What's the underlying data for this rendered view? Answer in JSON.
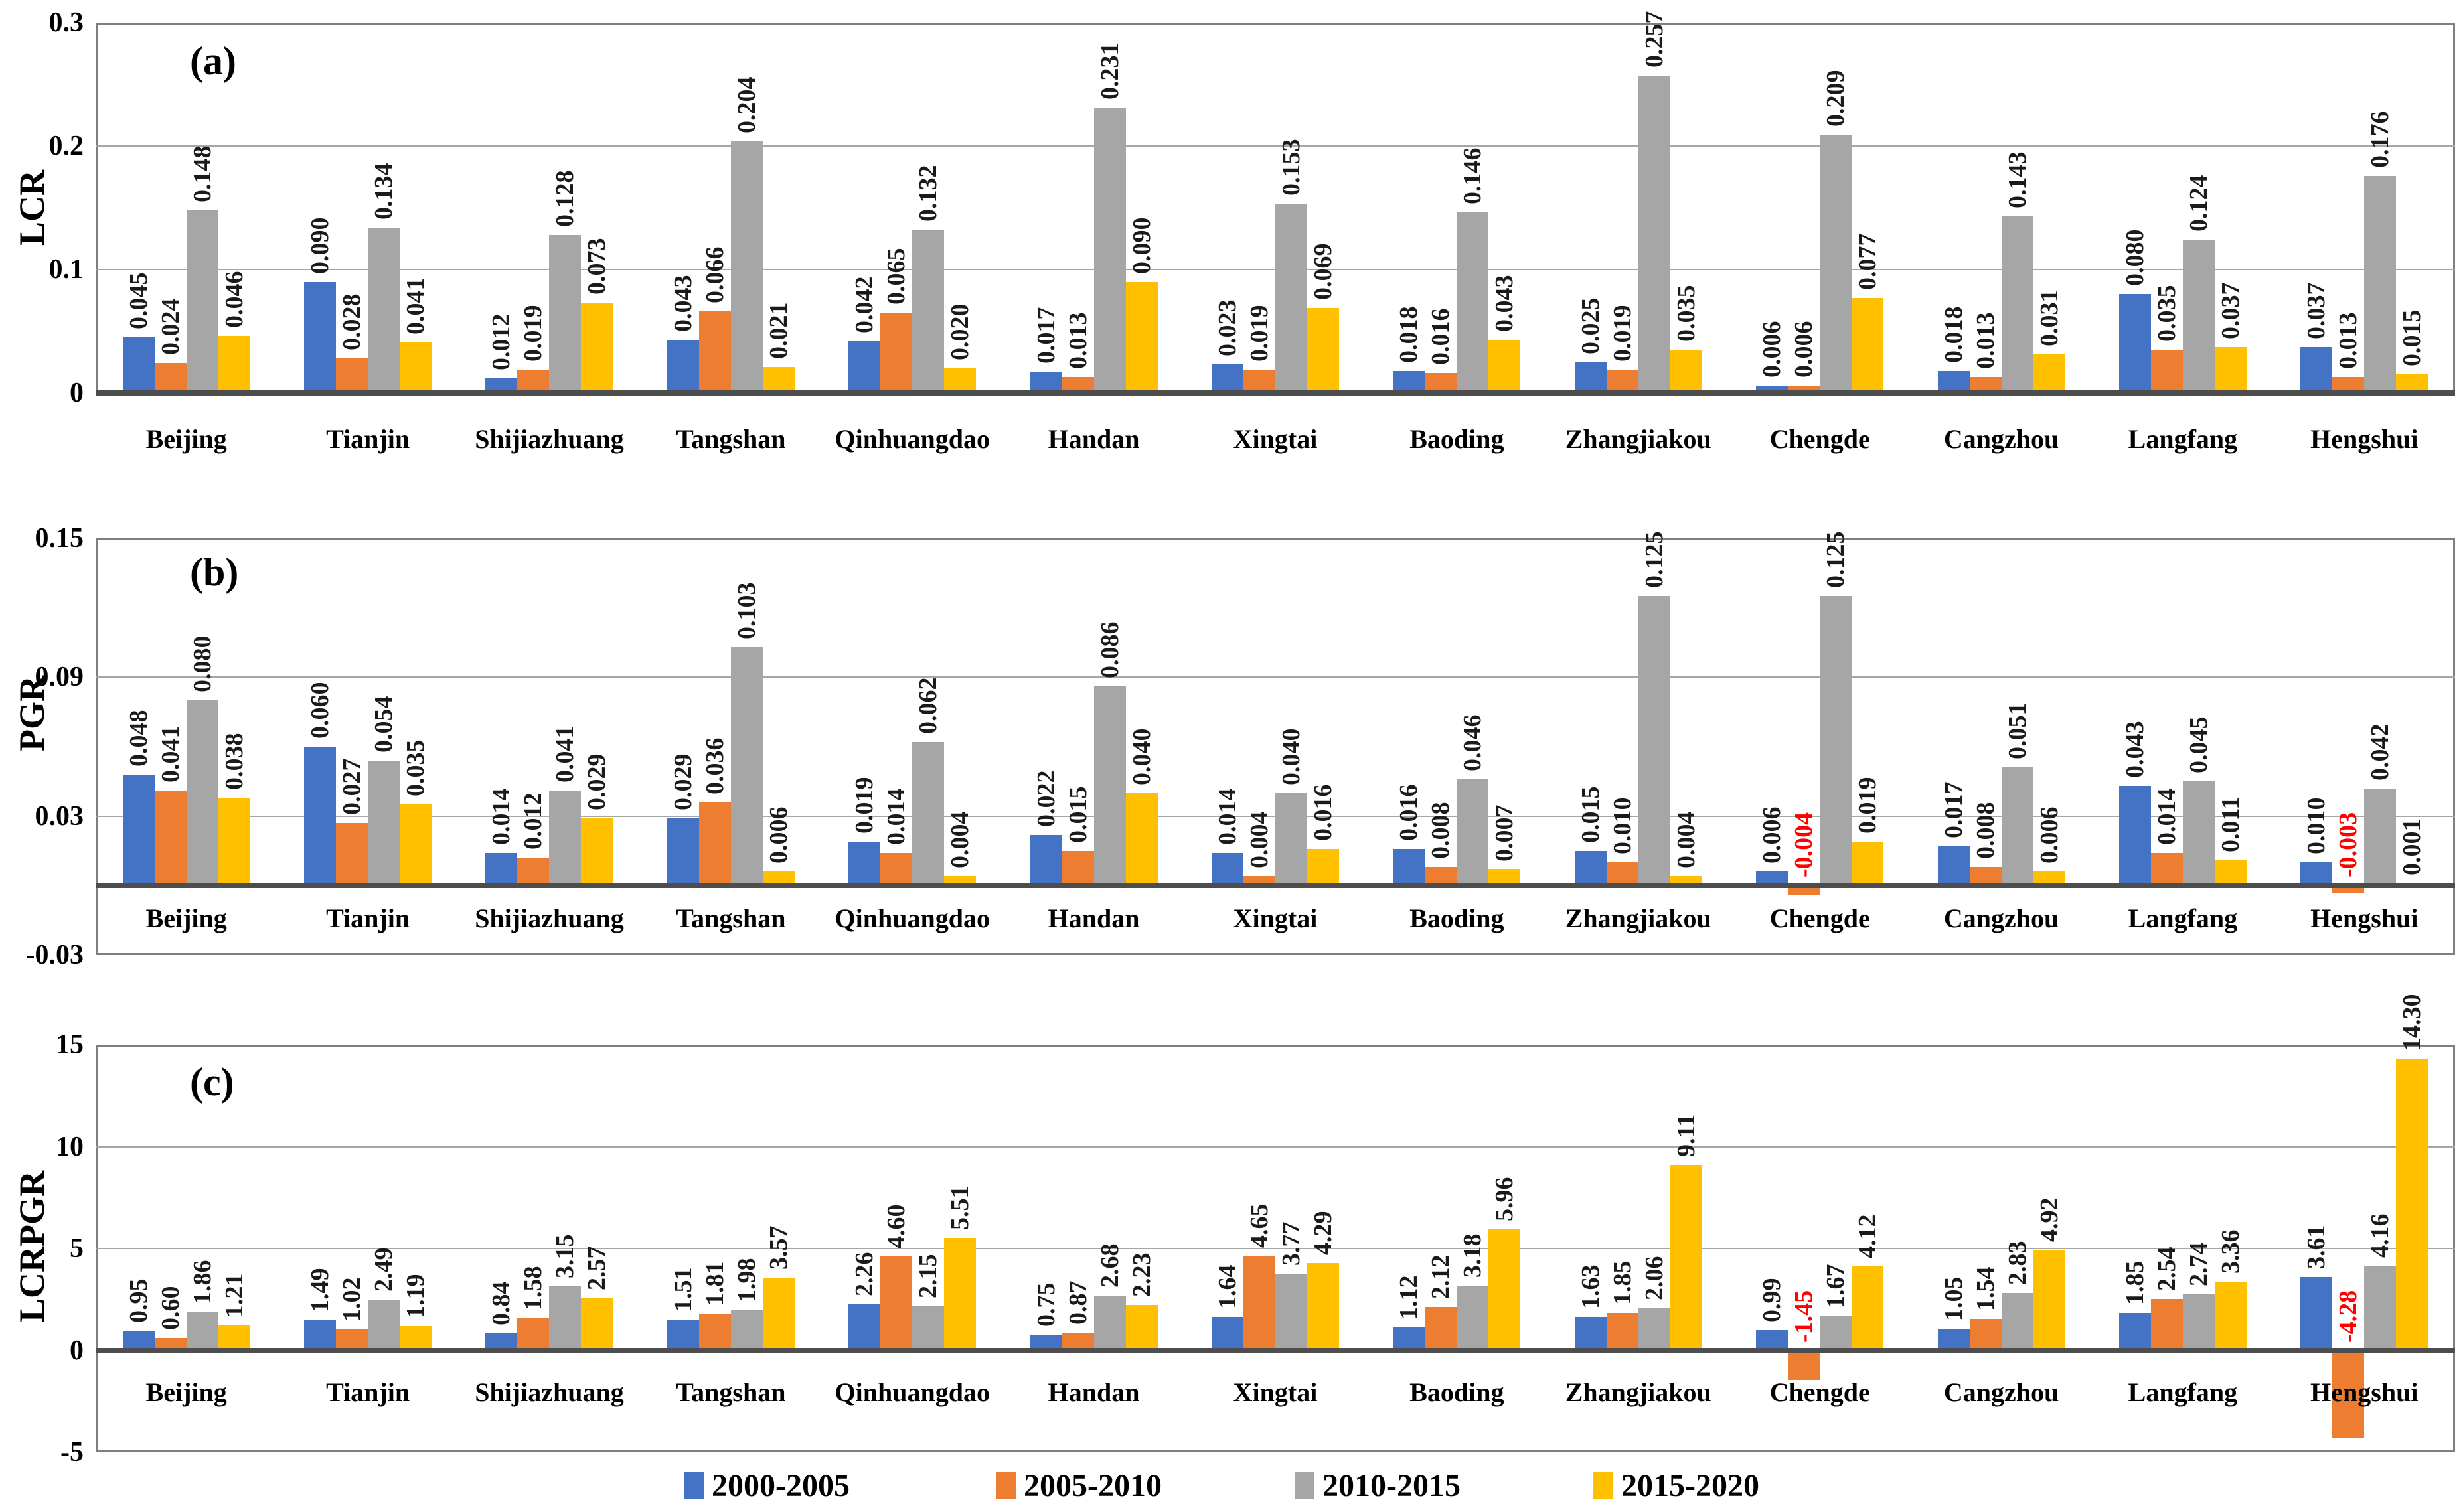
{
  "figure": {
    "background": "#ffffff",
    "grid_color": "#a6a6a6",
    "border_color": "#7f7f7f",
    "zero_axis_color": "#4d4d4d",
    "negative_label_color": "#ff0000",
    "legend": [
      {
        "label": "2000-2005",
        "color": "#4472c4"
      },
      {
        "label": "2005-2010",
        "color": "#ed7d31"
      },
      {
        "label": "2010-2015",
        "color": "#a6a6a6"
      },
      {
        "label": "2015-2020",
        "color": "#ffc000"
      }
    ]
  },
  "chart_data": [
    {
      "panel_label": "(a)",
      "type": "bar",
      "ylabel": "LCR",
      "ylim": [
        0,
        0.3
      ],
      "yticks": [
        {
          "value": 0.3,
          "label": "0.3"
        },
        {
          "value": 0.2,
          "label": "0.2"
        },
        {
          "value": 0.1,
          "label": "0.1"
        },
        {
          "value": 0,
          "label": "0"
        }
      ],
      "grid": true,
      "categories": [
        "Beijing",
        "Tianjin",
        "Shijiazhuang",
        "Tangshan",
        "Qinhuangdao",
        "Handan",
        "Xingtai",
        "Baoding",
        "Zhangjiakou",
        "Chengde",
        "Cangzhou",
        "Langfang",
        "Hengshui"
      ],
      "series": [
        {
          "name": "2000-2005",
          "color": "#4472c4",
          "values": [
            0.045,
            0.09,
            0.012,
            0.043,
            0.042,
            0.017,
            0.023,
            0.018,
            0.025,
            0.006,
            0.018,
            0.08,
            0.037
          ],
          "labels": [
            "0.045",
            "0.090",
            "0.012",
            "0.043",
            "0.042",
            "0.017",
            "0.023",
            "0.018",
            "0.025",
            "0.006",
            "0.018",
            "0.080",
            "0.037"
          ]
        },
        {
          "name": "2005-2010",
          "color": "#ed7d31",
          "values": [
            0.024,
            0.028,
            0.019,
            0.066,
            0.065,
            0.013,
            0.019,
            0.016,
            0.019,
            0.006,
            0.013,
            0.035,
            0.013
          ],
          "labels": [
            "0.024",
            "0.028",
            "0.019",
            "0.066",
            "0.065",
            "0.013",
            "0.019",
            "0.016",
            "0.019",
            "0.006",
            "0.013",
            "0.035",
            "0.013"
          ]
        },
        {
          "name": "2010-2015",
          "color": "#a6a6a6",
          "values": [
            0.148,
            0.134,
            0.128,
            0.204,
            0.132,
            0.231,
            0.153,
            0.146,
            0.257,
            0.209,
            0.143,
            0.124,
            0.176
          ],
          "labels": [
            "0.148",
            "0.134",
            "0.128",
            "0.204",
            "0.132",
            "0.231",
            "0.153",
            "0.146",
            "0.257",
            "0.209",
            "0.143",
            "0.124",
            "0.176"
          ]
        },
        {
          "name": "2015-2020",
          "color": "#ffc000",
          "values": [
            0.046,
            0.041,
            0.073,
            0.021,
            0.02,
            0.09,
            0.069,
            0.043,
            0.035,
            0.077,
            0.031,
            0.037,
            0.015
          ],
          "labels": [
            "0.046",
            "0.041",
            "0.073",
            "0.021",
            "0.020",
            "0.090",
            "0.069",
            "0.043",
            "0.035",
            "0.077",
            "0.031",
            "0.037",
            "0.015"
          ]
        }
      ]
    },
    {
      "panel_label": "(b)",
      "type": "bar",
      "ylabel": "PGR",
      "ylim": [
        -0.03,
        0.15
      ],
      "yticks": [
        {
          "value": 0.15,
          "label": "0.15"
        },
        {
          "value": 0.09,
          "label": "0.09"
        },
        {
          "value": 0.03,
          "label": "0.03"
        },
        {
          "value": -0.03,
          "label": "-0.03"
        }
      ],
      "grid": true,
      "categories": [
        "Beijing",
        "Tianjin",
        "Shijiazhuang",
        "Tangshan",
        "Qinhuangdao",
        "Handan",
        "Xingtai",
        "Baoding",
        "Zhangjiakou",
        "Chengde",
        "Cangzhou",
        "Langfang",
        "Hengshui"
      ],
      "series": [
        {
          "name": "2000-2005",
          "color": "#4472c4",
          "values": [
            0.048,
            0.06,
            0.014,
            0.029,
            0.019,
            0.022,
            0.014,
            0.016,
            0.015,
            0.006,
            0.017,
            0.043,
            0.01
          ],
          "labels": [
            "0.048",
            "0.060",
            "0.014",
            "0.029",
            "0.019",
            "0.022",
            "0.014",
            "0.016",
            "0.015",
            "0.006",
            "0.017",
            "0.043",
            "0.010"
          ]
        },
        {
          "name": "2005-2010",
          "color": "#ed7d31",
          "values": [
            0.041,
            0.027,
            0.012,
            0.036,
            0.014,
            0.015,
            0.004,
            0.008,
            0.01,
            -0.004,
            0.008,
            0.014,
            -0.003
          ],
          "labels": [
            "0.041",
            "0.027",
            "0.012",
            "0.036",
            "0.014",
            "0.015",
            "0.004",
            "0.008",
            "0.010",
            "-0.004",
            "0.008",
            "0.014",
            "-0.003"
          ]
        },
        {
          "name": "2010-2015",
          "color": "#a6a6a6",
          "values": [
            0.08,
            0.054,
            0.041,
            0.103,
            0.062,
            0.086,
            0.04,
            0.046,
            0.125,
            0.125,
            0.051,
            0.045,
            0.042
          ],
          "labels": [
            "0.080",
            "0.054",
            "0.041",
            "0.103",
            "0.062",
            "0.086",
            "0.040",
            "0.046",
            "0.125",
            "0.125",
            "0.051",
            "0.045",
            "0.042"
          ]
        },
        {
          "name": "2015-2020",
          "color": "#ffc000",
          "values": [
            0.038,
            0.035,
            0.029,
            0.006,
            0.004,
            0.04,
            0.016,
            0.007,
            0.004,
            0.019,
            0.006,
            0.011,
            0.001
          ],
          "labels": [
            "0.038",
            "0.035",
            "0.029",
            "0.006",
            "0.004",
            "0.040",
            "0.016",
            "0.007",
            "0.004",
            "0.019",
            "0.006",
            "0.011",
            "0.001"
          ]
        }
      ]
    },
    {
      "panel_label": "(c)",
      "type": "bar",
      "ylabel": "LCRPGR",
      "ylim": [
        -5,
        15
      ],
      "yticks": [
        {
          "value": 15,
          "label": "15"
        },
        {
          "value": 10,
          "label": "10"
        },
        {
          "value": 5,
          "label": "5"
        },
        {
          "value": 0,
          "label": "0"
        },
        {
          "value": -5,
          "label": "-5"
        }
      ],
      "grid": true,
      "categories": [
        "Beijing",
        "Tianjin",
        "Shijiazhuang",
        "Tangshan",
        "Qinhuangdao",
        "Handan",
        "Xingtai",
        "Baoding",
        "Zhangjiakou",
        "Chengde",
        "Cangzhou",
        "Langfang",
        "Hengshui"
      ],
      "series": [
        {
          "name": "2000-2005",
          "color": "#4472c4",
          "values": [
            0.95,
            1.49,
            0.84,
            1.51,
            2.26,
            0.75,
            1.64,
            1.12,
            1.63,
            0.99,
            1.05,
            1.85,
            3.61
          ],
          "labels": [
            "0.95",
            "1.49",
            "0.84",
            "1.51",
            "2.26",
            "0.75",
            "1.64",
            "1.12",
            "1.63",
            "0.99",
            "1.05",
            "1.85",
            "3.61"
          ]
        },
        {
          "name": "2005-2010",
          "color": "#ed7d31",
          "values": [
            0.6,
            1.02,
            1.58,
            1.81,
            4.6,
            0.87,
            4.65,
            2.12,
            1.85,
            -1.45,
            1.54,
            2.54,
            -4.28
          ],
          "labels": [
            "0.60",
            "1.02",
            "1.58",
            "1.81",
            "4.60",
            "0.87",
            "4.65",
            "2.12",
            "1.85",
            "-1.45",
            "1.54",
            "2.54",
            "-4.28"
          ]
        },
        {
          "name": "2010-2015",
          "color": "#a6a6a6",
          "values": [
            1.86,
            2.49,
            3.15,
            1.98,
            2.15,
            2.68,
            3.77,
            3.18,
            2.06,
            1.67,
            2.83,
            2.74,
            4.16
          ],
          "labels": [
            "1.86",
            "2.49",
            "3.15",
            "1.98",
            "2.15",
            "2.68",
            "3.77",
            "3.18",
            "2.06",
            "1.67",
            "2.83",
            "2.74",
            "4.16"
          ]
        },
        {
          "name": "2015-2020",
          "color": "#ffc000",
          "values": [
            1.21,
            1.19,
            2.57,
            3.57,
            5.51,
            2.23,
            4.29,
            5.96,
            9.11,
            4.12,
            4.92,
            3.36,
            14.3
          ],
          "labels": [
            "1.21",
            "1.19",
            "2.57",
            "3.57",
            "5.51",
            "2.23",
            "4.29",
            "5.96",
            "9.11",
            "4.12",
            "4.92",
            "3.36",
            "14.30"
          ]
        }
      ]
    }
  ]
}
